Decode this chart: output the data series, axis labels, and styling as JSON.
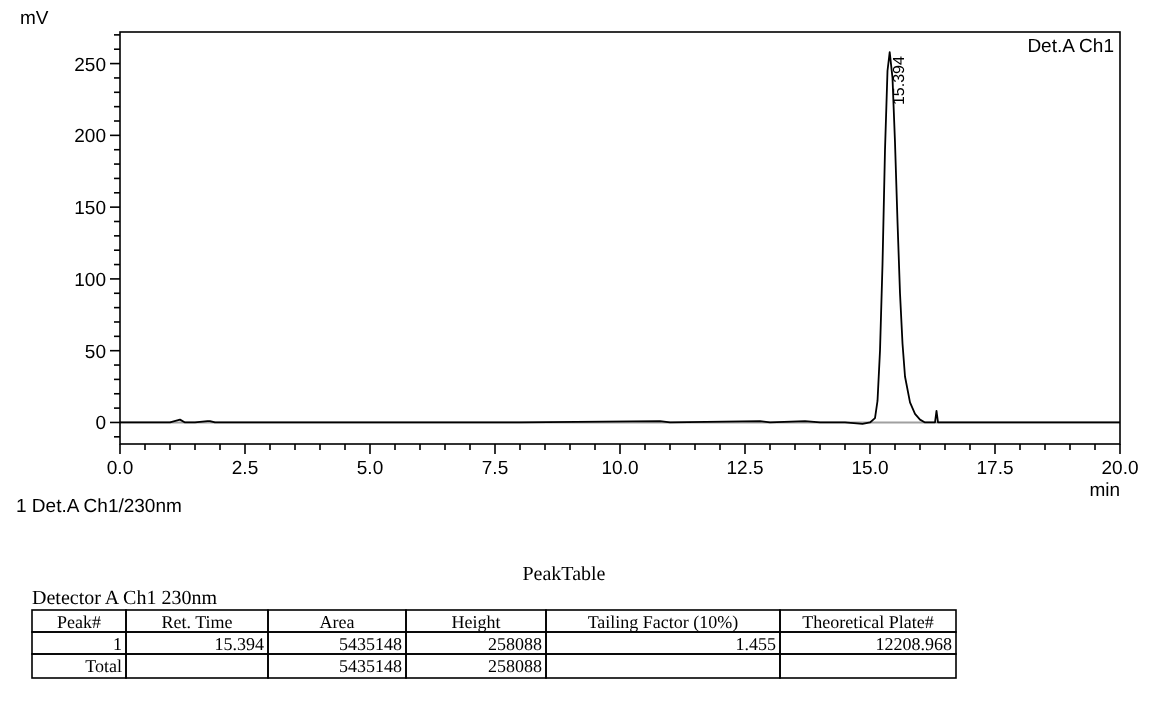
{
  "chart_data": {
    "type": "line",
    "xlabel": "min",
    "ylabel": "mV",
    "x": [
      0,
      0.5,
      1.0,
      1.2,
      1.3,
      1.5,
      1.75,
      1.8,
      1.9,
      2.5,
      5,
      8,
      10.8,
      11,
      12.8,
      13,
      13.7,
      14,
      14.5,
      14.85,
      15.0,
      15.1,
      15.15,
      15.2,
      15.25,
      15.3,
      15.35,
      15.394,
      15.45,
      15.5,
      15.55,
      15.6,
      15.65,
      15.7,
      15.8,
      15.9,
      16.0,
      16.1,
      16.3,
      16.33,
      16.36,
      16.5,
      18,
      20
    ],
    "series": [
      {
        "color": "#000000",
        "values": [
          0,
          0,
          0,
          2,
          0,
          0,
          1,
          1,
          0,
          0,
          0,
          0,
          1,
          0,
          1,
          0,
          1,
          0,
          0,
          -1,
          0,
          3,
          15,
          50,
          110,
          190,
          245,
          258,
          240,
          195,
          140,
          90,
          55,
          32,
          14,
          6,
          2,
          0,
          0,
          8,
          0,
          0,
          0,
          0
        ]
      }
    ],
    "xlim": [
      0,
      20
    ],
    "ylim": [
      -15,
      272
    ],
    "xticks": [
      {
        "value": 0,
        "label": "0.0"
      },
      {
        "value": 0.5,
        "label": null
      },
      {
        "value": 1,
        "label": null
      },
      {
        "value": 1.5,
        "label": null
      },
      {
        "value": 2,
        "label": null
      },
      {
        "value": 2.5,
        "label": "2.5"
      },
      {
        "value": 3,
        "label": null
      },
      {
        "value": 3.5,
        "label": null
      },
      {
        "value": 4,
        "label": null
      },
      {
        "value": 4.5,
        "label": null
      },
      {
        "value": 5,
        "label": "5.0"
      },
      {
        "value": 5.5,
        "label": null
      },
      {
        "value": 6,
        "label": null
      },
      {
        "value": 6.5,
        "label": null
      },
      {
        "value": 7,
        "label": null
      },
      {
        "value": 7.5,
        "label": "7.5"
      },
      {
        "value": 8,
        "label": null
      },
      {
        "value": 8.5,
        "label": null
      },
      {
        "value": 9,
        "label": null
      },
      {
        "value": 9.5,
        "label": null
      },
      {
        "value": 10,
        "label": "10.0"
      },
      {
        "value": 10.5,
        "label": null
      },
      {
        "value": 11,
        "label": null
      },
      {
        "value": 11.5,
        "label": null
      },
      {
        "value": 12,
        "label": null
      },
      {
        "value": 12.5,
        "label": "12.5"
      },
      {
        "value": 13,
        "label": null
      },
      {
        "value": 13.5,
        "label": null
      },
      {
        "value": 14,
        "label": null
      },
      {
        "value": 14.5,
        "label": null
      },
      {
        "value": 15,
        "label": "15.0"
      },
      {
        "value": 15.5,
        "label": null
      },
      {
        "value": 16,
        "label": null
      },
      {
        "value": 16.5,
        "label": null
      },
      {
        "value": 17,
        "label": null
      },
      {
        "value": 17.5,
        "label": "17.5"
      },
      {
        "value": 18,
        "label": null
      },
      {
        "value": 18.5,
        "label": null
      },
      {
        "value": 19,
        "label": null
      },
      {
        "value": 19.5,
        "label": null
      },
      {
        "value": 20,
        "label": "20.0"
      }
    ],
    "yticks": [
      {
        "value": -10,
        "label": null
      },
      0,
      {
        "value": 10,
        "label": null
      },
      {
        "value": 20,
        "label": null
      },
      {
        "value": 30,
        "label": null
      },
      {
        "value": 40,
        "label": null
      },
      50,
      {
        "value": 60,
        "label": null
      },
      {
        "value": 70,
        "label": null
      },
      {
        "value": 80,
        "label": null
      },
      {
        "value": 90,
        "label": null
      },
      100,
      {
        "value": 110,
        "label": null
      },
      {
        "value": 120,
        "label": null
      },
      {
        "value": 130,
        "label": null
      },
      {
        "value": 140,
        "label": null
      },
      150,
      {
        "value": 160,
        "label": null
      },
      {
        "value": 170,
        "label": null
      },
      {
        "value": 180,
        "label": null
      },
      {
        "value": 190,
        "label": null
      },
      200,
      {
        "value": 210,
        "label": null
      },
      {
        "value": 220,
        "label": null
      },
      {
        "value": 230,
        "label": null
      },
      {
        "value": 240,
        "label": null
      },
      250,
      {
        "value": 260,
        "label": null
      },
      {
        "value": 270,
        "label": null
      }
    ],
    "grid": false,
    "line_style": "solid",
    "marker": "none",
    "ref_lines": [
      {
        "axis": "y",
        "value": 0,
        "color": "#a0a0a0"
      }
    ],
    "annotations": [
      {
        "text": "15.394",
        "x": 15.394,
        "y": 258
      },
      "Det.A Ch1",
      "1  Det.A Ch1/230nm",
      "PeakTable",
      "Detector A Ch1 230nm",
      "Peak#",
      "Ret. Time",
      "Area",
      "Height",
      "Tailing Factor (10%)",
      "Theoretical Plate#",
      "1",
      "15.394",
      "5435148",
      "258088",
      "1.455",
      "12208.968",
      "Total",
      "5435148",
      "258088"
    ]
  }
}
